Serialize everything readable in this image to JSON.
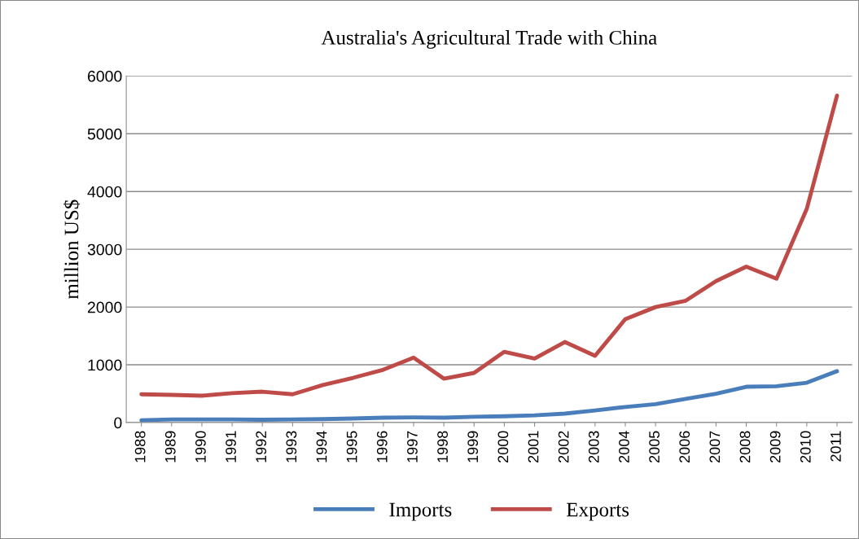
{
  "chart_data": {
    "type": "line",
    "title": "Australia's Agricultural Trade with China",
    "ylabel": "million US$",
    "categories": [
      "1988",
      "1989",
      "1990",
      "1991",
      "1992",
      "1993",
      "1994",
      "1995",
      "1996",
      "1997",
      "1998",
      "1999",
      "2000",
      "2001",
      "2002",
      "2003",
      "2004",
      "2005",
      "2006",
      "2007",
      "2008",
      "2009",
      "2010",
      "2011"
    ],
    "series": [
      {
        "name": "Imports",
        "color": "#4a7ebb",
        "values": [
          40,
          55,
          55,
          55,
          50,
          55,
          60,
          70,
          85,
          90,
          85,
          100,
          110,
          125,
          155,
          210,
          270,
          320,
          410,
          500,
          620,
          630,
          690,
          890
        ]
      },
      {
        "name": "Exports",
        "color": "#be4b48",
        "values": [
          490,
          480,
          465,
          510,
          535,
          490,
          650,
          775,
          915,
          1125,
          760,
          860,
          1225,
          1110,
          1395,
          1155,
          1790,
          2000,
          2110,
          2450,
          2700,
          2490,
          3700,
          5660
        ]
      }
    ],
    "ylim": [
      0,
      6000
    ],
    "yticks": [
      0,
      1000,
      2000,
      3000,
      4000,
      5000,
      6000
    ],
    "grid": "y",
    "legend": "bottom",
    "marker": "none",
    "line_style": "solid"
  }
}
